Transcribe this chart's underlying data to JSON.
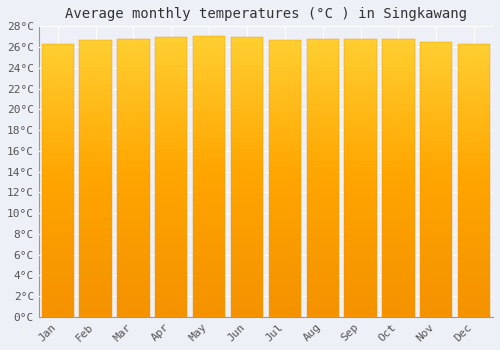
{
  "title": "Average monthly temperatures (°C ) in Singkawang",
  "months": [
    "Jan",
    "Feb",
    "Mar",
    "Apr",
    "May",
    "Jun",
    "Jul",
    "Aug",
    "Sep",
    "Oct",
    "Nov",
    "Dec"
  ],
  "values": [
    26.3,
    26.7,
    26.8,
    27.0,
    27.1,
    27.0,
    26.7,
    26.8,
    26.8,
    26.8,
    26.5,
    26.3
  ],
  "bar_color_main": "#FFA500",
  "bar_color_light": "#FFD040",
  "bar_color_dark": "#F59200",
  "background_color": "#EEF0F8",
  "plot_bg_color": "#EEF0F8",
  "grid_color": "#FFFFFF",
  "text_color": "#555555",
  "ylim": [
    0,
    28
  ],
  "ytick_step": 2,
  "title_fontsize": 10,
  "tick_fontsize": 8,
  "bar_width": 0.85
}
